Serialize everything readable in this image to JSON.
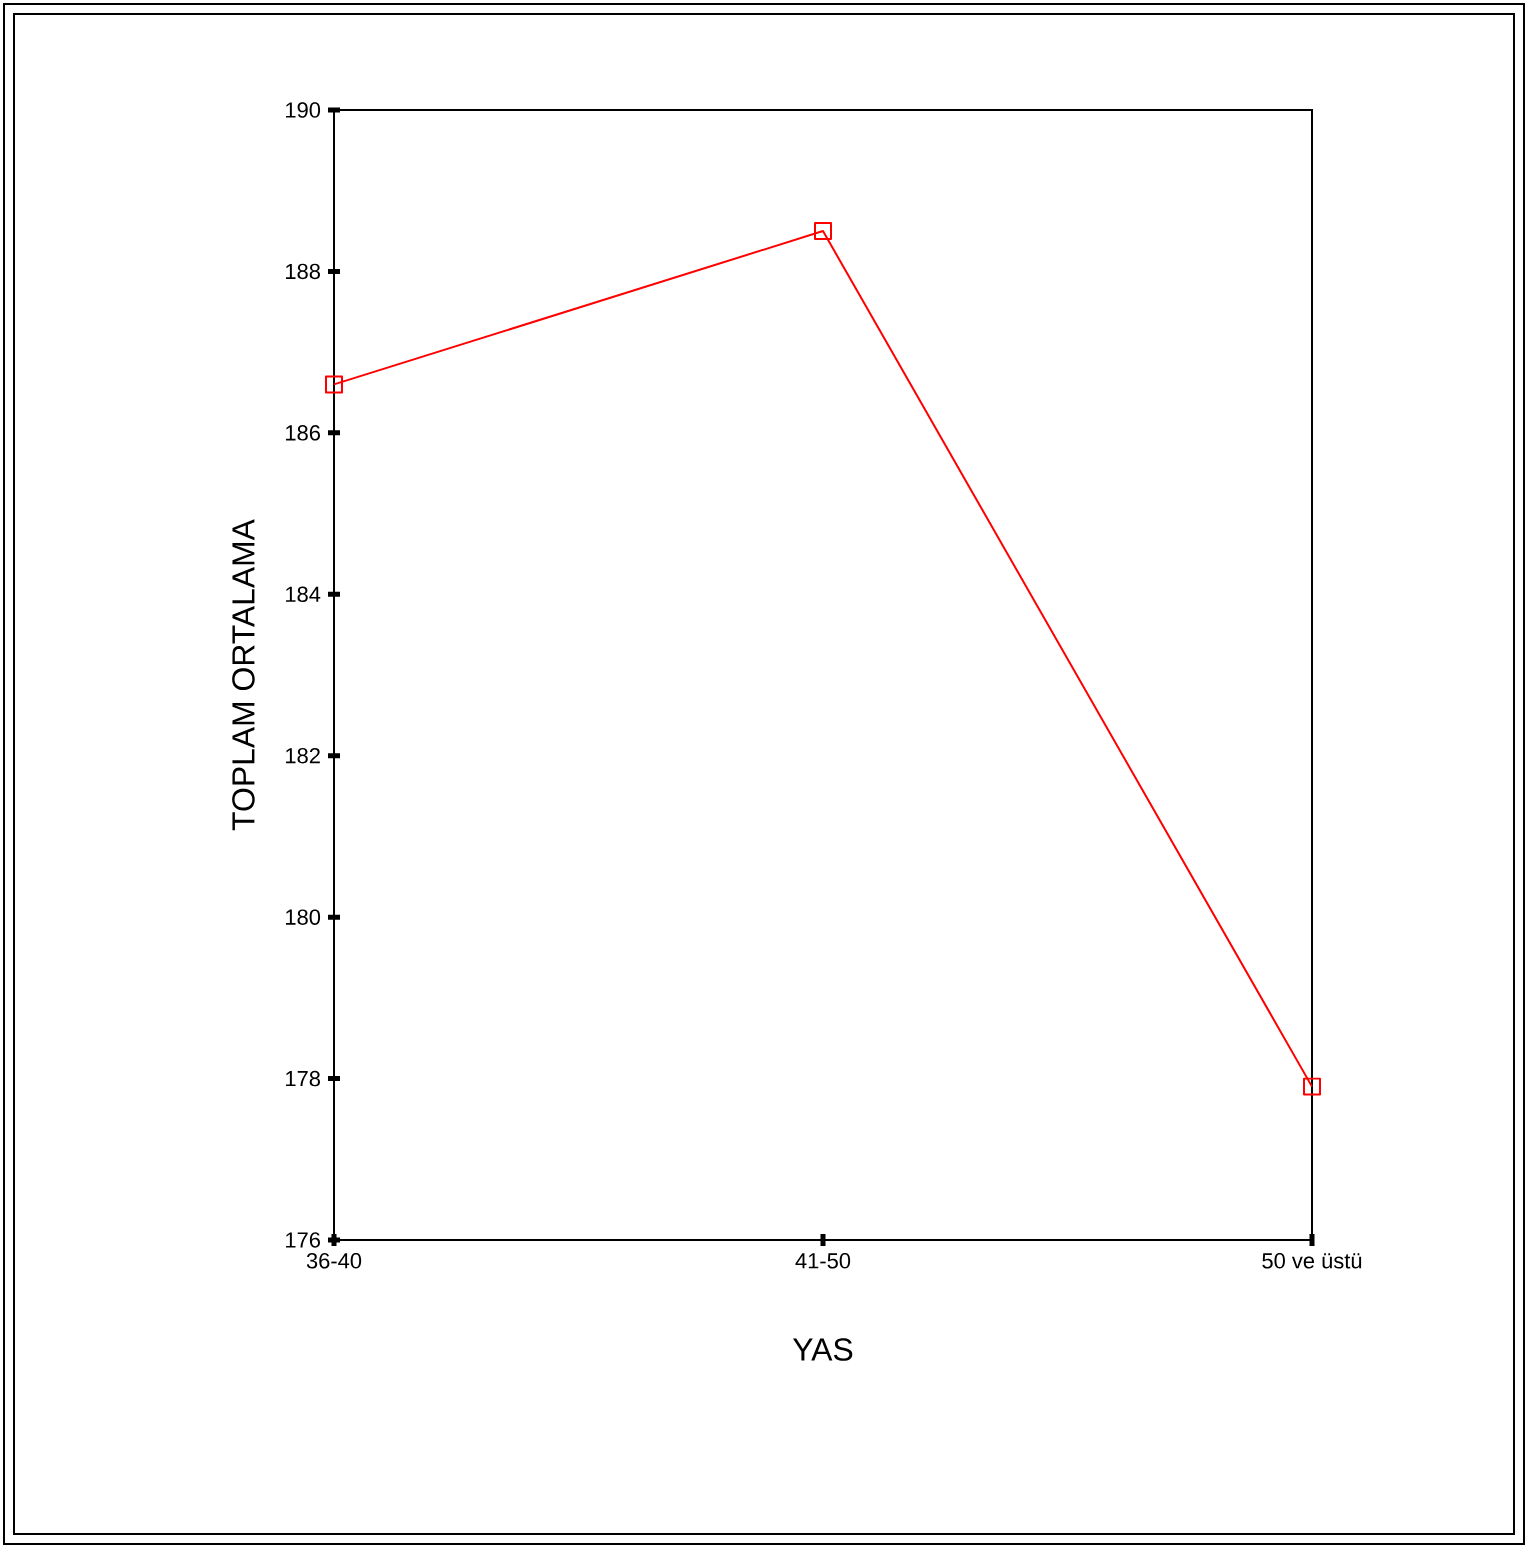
{
  "chart_data": {
    "type": "line",
    "xlabel": "YAS",
    "ylabel": "TOPLAM ORTALAMA",
    "categories": [
      "36-40",
      "41-50",
      "50 ve üstü"
    ],
    "series": [
      {
        "color": "#ff0000",
        "values": [
          186.6,
          188.5,
          177.9
        ]
      }
    ],
    "ylim": [
      176,
      190
    ],
    "yticks": [
      176,
      178,
      180,
      182,
      184,
      186,
      188,
      190
    ],
    "marker": "square",
    "line_style": "solid",
    "grid": false
  }
}
